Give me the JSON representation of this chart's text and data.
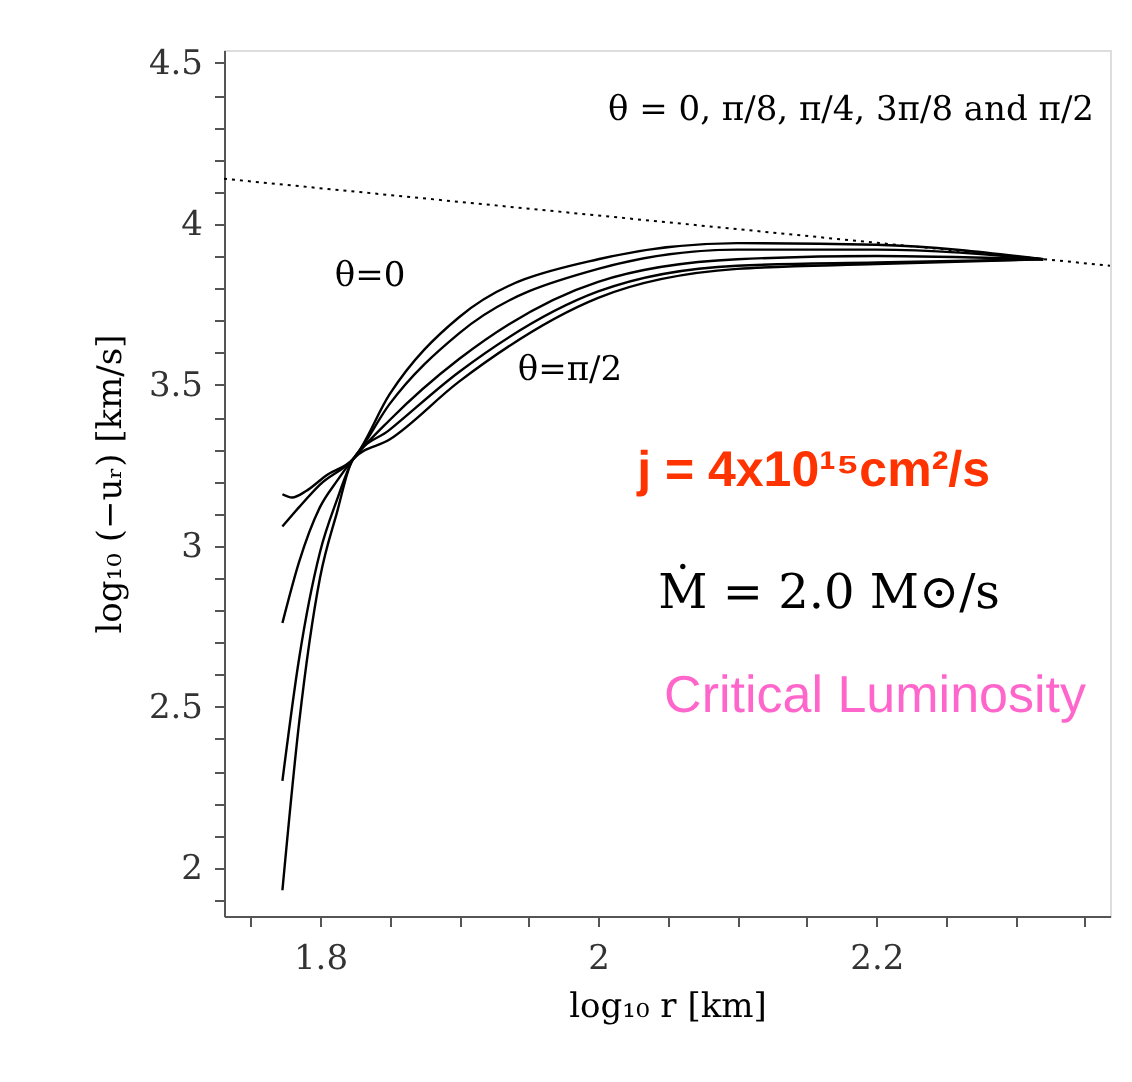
{
  "chart_data": {
    "type": "line",
    "xlabel": "log₁₀ r [km]",
    "ylabel": "log₁₀ (−uᵣ) [km/s]",
    "xlim": [
      1.731,
      2.368
    ],
    "ylim": [
      1.85,
      4.54
    ],
    "xticks": [
      {
        "value": 1.75,
        "label": null
      },
      1.8,
      {
        "value": 1.85,
        "label": null
      },
      {
        "value": 1.9,
        "label": null
      },
      {
        "value": 1.95,
        "label": null
      },
      2,
      {
        "value": 2.05,
        "label": null
      },
      {
        "value": 2.1,
        "label": null
      },
      {
        "value": 2.15,
        "label": null
      },
      2.2,
      {
        "value": 2.25,
        "label": null
      },
      {
        "value": 2.3,
        "label": null
      },
      {
        "value": 2.35,
        "label": null
      }
    ],
    "yticks": [
      {
        "value": 1.9,
        "label": null
      },
      2,
      {
        "value": 2.1,
        "label": null
      },
      {
        "value": 2.2,
        "label": null
      },
      {
        "value": 2.3,
        "label": null
      },
      {
        "value": 2.4,
        "label": null
      },
      2.5,
      {
        "value": 2.6,
        "label": null
      },
      {
        "value": 2.7,
        "label": null
      },
      {
        "value": 2.8,
        "label": null
      },
      {
        "value": 2.9,
        "label": null
      },
      3,
      {
        "value": 3.1,
        "label": null
      },
      {
        "value": 3.2,
        "label": null
      },
      {
        "value": 3.3,
        "label": null
      },
      {
        "value": 3.4,
        "label": null
      },
      3.5,
      {
        "value": 3.6,
        "label": null
      },
      {
        "value": 3.7,
        "label": null
      },
      {
        "value": 3.8,
        "label": null
      },
      {
        "value": 3.9,
        "label": null
      },
      4,
      {
        "value": 4.1,
        "label": null
      },
      {
        "value": 4.2,
        "label": null
      },
      {
        "value": 4.3,
        "label": null
      },
      {
        "value": 4.4,
        "label": null
      },
      4.5
    ],
    "grid": false,
    "marker": "none",
    "series": [
      {
        "color": "#000000",
        "x": [
          1.773,
          1.78,
          1.79,
          1.805,
          1.824,
          1.85,
          1.9,
          2.0,
          2.1,
          2.2,
          2.32
        ],
        "values": [
          3.16,
          3.15,
          3.17,
          3.22,
          3.27,
          3.47,
          3.71,
          3.89,
          3.94,
          3.935,
          3.89
        ]
      },
      {
        "color": "#000000",
        "x": [
          1.773,
          1.785,
          1.8,
          1.824,
          1.85,
          1.9,
          2.0,
          2.1,
          2.2,
          2.32
        ],
        "values": [
          3.06,
          3.12,
          3.19,
          3.27,
          3.44,
          3.66,
          3.86,
          3.92,
          3.92,
          3.89
        ]
      },
      {
        "color": "#000000",
        "x": [
          1.773,
          1.785,
          1.8,
          1.812,
          1.824,
          1.85,
          1.9,
          2.0,
          2.1,
          2.2,
          2.32
        ],
        "values": [
          2.76,
          2.95,
          3.12,
          3.2,
          3.27,
          3.39,
          3.58,
          3.82,
          3.89,
          3.9,
          3.89
        ]
      },
      {
        "color": "#000000",
        "x": [
          1.773,
          1.785,
          1.8,
          1.812,
          1.824,
          1.85,
          1.9,
          2.0,
          2.1,
          2.2,
          2.32
        ],
        "values": [
          2.27,
          2.65,
          2.98,
          3.14,
          3.27,
          3.36,
          3.54,
          3.79,
          3.87,
          3.88,
          3.89
        ]
      },
      {
        "color": "#000000",
        "x": [
          1.773,
          1.785,
          1.8,
          1.812,
          1.824,
          1.85,
          1.9,
          2.0,
          2.1,
          2.2,
          2.32
        ],
        "values": [
          1.93,
          2.45,
          2.9,
          3.1,
          3.27,
          3.33,
          3.51,
          3.77,
          3.86,
          3.875,
          3.89
        ]
      },
      {
        "color": "#000000",
        "line_style": "dotted",
        "x": [
          1.731,
          2.368
        ],
        "values": [
          4.14,
          3.87
        ]
      }
    ],
    "annotations": [
      "θ = 0, π/8, π/4, 3π/8 and π/2",
      "θ=0",
      "θ=π/2",
      "j = 4x10¹⁵cm²/s",
      "Ṁ = 2.0 M⊙/s",
      "Critical Luminosity"
    ]
  }
}
